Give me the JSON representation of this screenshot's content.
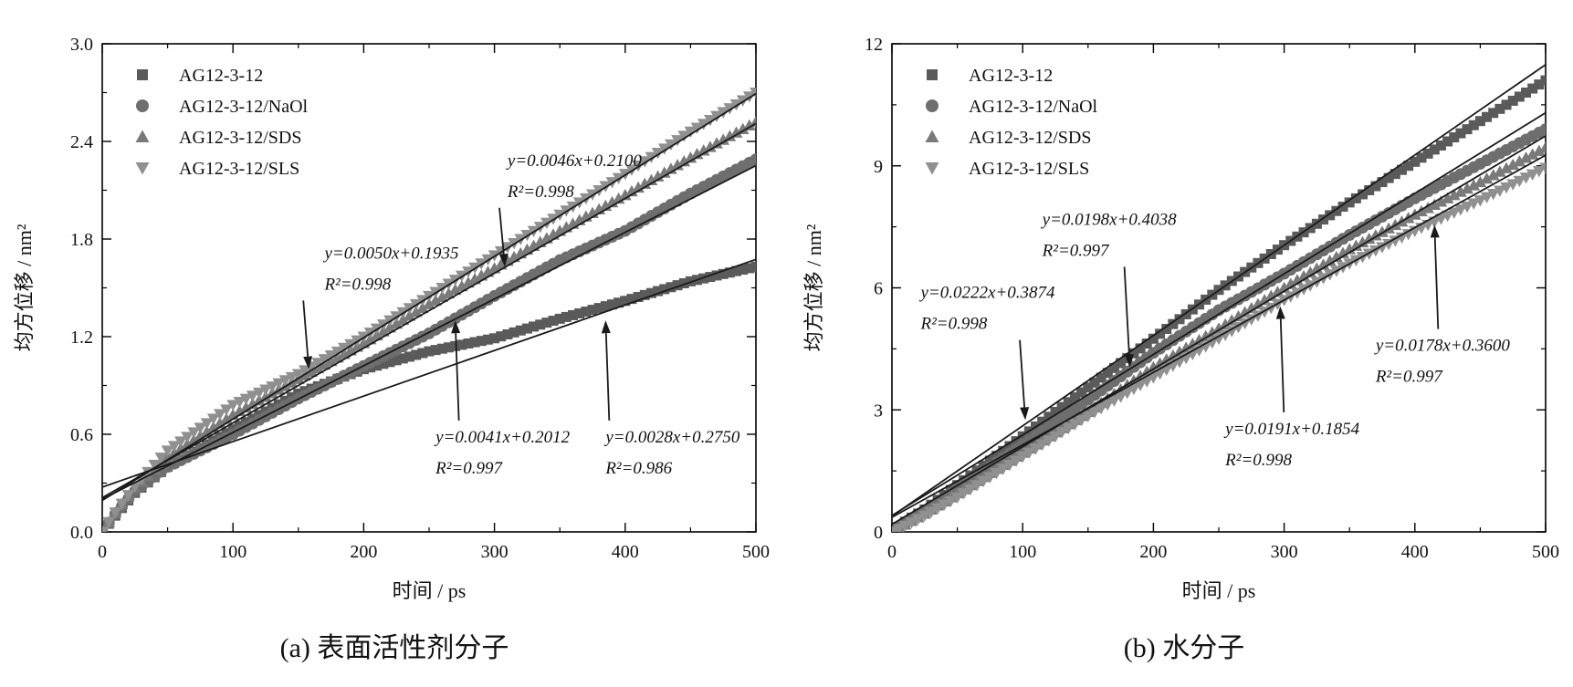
{
  "colors": {
    "axis": "#000000",
    "fit_line": "#1a1a1a",
    "series_1": "#5a5a5a",
    "series_2": "#6e6e6e",
    "series_3": "#7a7a7a",
    "series_4": "#909090"
  },
  "chart_data": [
    {
      "type": "scatter",
      "caption": "(a) 表面活性剂分子",
      "xlabel": "时间 / ps",
      "ylabel": "均方位移 / nm²",
      "xlim": [
        0,
        500
      ],
      "ylim": [
        0,
        3.0
      ],
      "xticks": [
        "0",
        "100",
        "200",
        "300",
        "400",
        "500"
      ],
      "yticks": [
        "0.0",
        "0.6",
        "1.2",
        "1.8",
        "2.4",
        "3.0"
      ],
      "legend_position": "top-left",
      "series": [
        {
          "name": "AG12-3-12",
          "marker": "square",
          "fit": {
            "slope": 0.0028,
            "intercept": 0.275
          },
          "points": [
            [
              0,
              0.0
            ],
            [
              10,
              0.1
            ],
            [
              25,
              0.24
            ],
            [
              50,
              0.4
            ],
            [
              100,
              0.63
            ],
            [
              150,
              0.85
            ],
            [
              200,
              1.0
            ],
            [
              250,
              1.11
            ],
            [
              300,
              1.19
            ],
            [
              350,
              1.31
            ],
            [
              400,
              1.42
            ],
            [
              450,
              1.54
            ],
            [
              500,
              1.63
            ]
          ]
        },
        {
          "name": "AG12-3-12/NaOl",
          "marker": "circle",
          "fit": {
            "slope": 0.0041,
            "intercept": 0.2012
          },
          "points": [
            [
              0,
              0.0
            ],
            [
              10,
              0.11
            ],
            [
              25,
              0.25
            ],
            [
              50,
              0.4
            ],
            [
              100,
              0.6
            ],
            [
              150,
              0.82
            ],
            [
              200,
              1.02
            ],
            [
              250,
              1.22
            ],
            [
              300,
              1.45
            ],
            [
              350,
              1.67
            ],
            [
              400,
              1.85
            ],
            [
              450,
              2.08
            ],
            [
              500,
              2.29
            ]
          ]
        },
        {
          "name": "AG12-3-12/SDS",
          "marker": "triangle-up",
          "fit": {
            "slope": 0.0046,
            "intercept": 0.21
          },
          "points": [
            [
              0,
              0.0
            ],
            [
              10,
              0.12
            ],
            [
              25,
              0.27
            ],
            [
              50,
              0.46
            ],
            [
              100,
              0.72
            ],
            [
              150,
              0.94
            ],
            [
              200,
              1.16
            ],
            [
              250,
              1.4
            ],
            [
              300,
              1.62
            ],
            [
              350,
              1.85
            ],
            [
              400,
              2.07
            ],
            [
              450,
              2.3
            ],
            [
              500,
              2.52
            ]
          ]
        },
        {
          "name": "AG12-3-12/SLS",
          "marker": "triangle-down",
          "fit": {
            "slope": 0.005,
            "intercept": 0.1935
          },
          "points": [
            [
              0,
              0.0
            ],
            [
              10,
              0.12
            ],
            [
              25,
              0.28
            ],
            [
              50,
              0.5
            ],
            [
              100,
              0.78
            ],
            [
              150,
              0.97
            ],
            [
              200,
              1.2
            ],
            [
              250,
              1.45
            ],
            [
              300,
              1.7
            ],
            [
              350,
              1.95
            ],
            [
              400,
              2.2
            ],
            [
              450,
              2.46
            ],
            [
              500,
              2.7
            ]
          ]
        }
      ],
      "annotations": [
        {
          "eq": "y=0.0046x+0.2100",
          "r2": "R²=0.998",
          "at": [
            310,
            2.25
          ],
          "target": [
            308,
            1.63
          ]
        },
        {
          "eq": "y=0.0050x+0.1935",
          "r2": "R²=0.998",
          "at": [
            170,
            1.68
          ],
          "target": [
            158,
            1.0
          ]
        },
        {
          "eq": "y=0.0041x+0.2012",
          "r2": "R²=0.997",
          "at": [
            255,
            0.55
          ],
          "target": [
            270,
            1.3
          ]
        },
        {
          "eq": "y=0.0028x+0.2750",
          "r2": "R²=0.986",
          "at": [
            385,
            0.55
          ],
          "target": [
            385,
            1.3
          ]
        }
      ]
    },
    {
      "type": "scatter",
      "caption": "(b) 水分子",
      "xlabel": "时间 / ps",
      "ylabel": "均方位移 / nm²",
      "xlim": [
        0,
        500
      ],
      "ylim": [
        0,
        12
      ],
      "xticks": [
        "0",
        "100",
        "200",
        "300",
        "400",
        "500"
      ],
      "yticks": [
        "0",
        "3",
        "6",
        "9",
        "12"
      ],
      "legend_position": "top-left",
      "series": [
        {
          "name": "AG12-3-12",
          "marker": "square",
          "fit": {
            "slope": 0.0222,
            "intercept": 0.3874
          },
          "points": [
            [
              0,
              0.0
            ],
            [
              10,
              0.25
            ],
            [
              25,
              0.55
            ],
            [
              50,
              1.15
            ],
            [
              100,
              2.35
            ],
            [
              150,
              3.55
            ],
            [
              200,
              4.75
            ],
            [
              250,
              5.95
            ],
            [
              300,
              7.05
            ],
            [
              350,
              8.1
            ],
            [
              400,
              9.1
            ],
            [
              450,
              10.1
            ],
            [
              500,
              11.1
            ]
          ]
        },
        {
          "name": "AG12-3-12/NaOl",
          "marker": "circle",
          "fit": {
            "slope": 0.0198,
            "intercept": 0.4038
          },
          "points": [
            [
              0,
              0.0
            ],
            [
              10,
              0.22
            ],
            [
              25,
              0.5
            ],
            [
              50,
              1.05
            ],
            [
              100,
              2.15
            ],
            [
              150,
              3.25
            ],
            [
              200,
              4.4
            ],
            [
              250,
              5.45
            ],
            [
              300,
              6.35
            ],
            [
              350,
              7.3
            ],
            [
              400,
              8.2
            ],
            [
              450,
              9.05
            ],
            [
              500,
              9.9
            ]
          ]
        },
        {
          "name": "AG12-3-12/SDS",
          "marker": "triangle-up",
          "fit": {
            "slope": 0.0191,
            "intercept": 0.1854
          },
          "points": [
            [
              0,
              0.0
            ],
            [
              10,
              0.18
            ],
            [
              25,
              0.45
            ],
            [
              50,
              0.95
            ],
            [
              100,
              1.95
            ],
            [
              150,
              2.95
            ],
            [
              200,
              4.05
            ],
            [
              250,
              5.0
            ],
            [
              300,
              6.0
            ],
            [
              350,
              6.95
            ],
            [
              400,
              7.8
            ],
            [
              450,
              8.6
            ],
            [
              500,
              9.45
            ]
          ]
        },
        {
          "name": "AG12-3-12/SLS",
          "marker": "triangle-down",
          "fit": {
            "slope": 0.0178,
            "intercept": 0.36
          },
          "points": [
            [
              0,
              0.0
            ],
            [
              10,
              0.15
            ],
            [
              25,
              0.4
            ],
            [
              50,
              0.85
            ],
            [
              100,
              1.85
            ],
            [
              150,
              2.85
            ],
            [
              200,
              3.8
            ],
            [
              250,
              4.75
            ],
            [
              300,
              5.7
            ],
            [
              350,
              6.6
            ],
            [
              400,
              7.4
            ],
            [
              450,
              8.15
            ],
            [
              500,
              8.95
            ]
          ]
        }
      ],
      "annotations": [
        {
          "eq": "y=0.0198x+0.4038",
          "r2": "R²=0.997",
          "at": [
            115,
            7.55
          ],
          "target": [
            182,
            4.05
          ]
        },
        {
          "eq": "y=0.0222x+0.3874",
          "r2": "R²=0.998",
          "at": [
            22,
            5.75
          ],
          "target": [
            102,
            2.75
          ]
        },
        {
          "eq": "y=0.0178x+0.3600",
          "r2": "R²=0.997",
          "at": [
            370,
            4.45
          ],
          "target": [
            415,
            7.55
          ]
        },
        {
          "eq": "y=0.0191x+0.1854",
          "r2": "R²=0.998",
          "at": [
            255,
            2.4
          ],
          "target": [
            297,
            5.55
          ]
        }
      ]
    }
  ]
}
